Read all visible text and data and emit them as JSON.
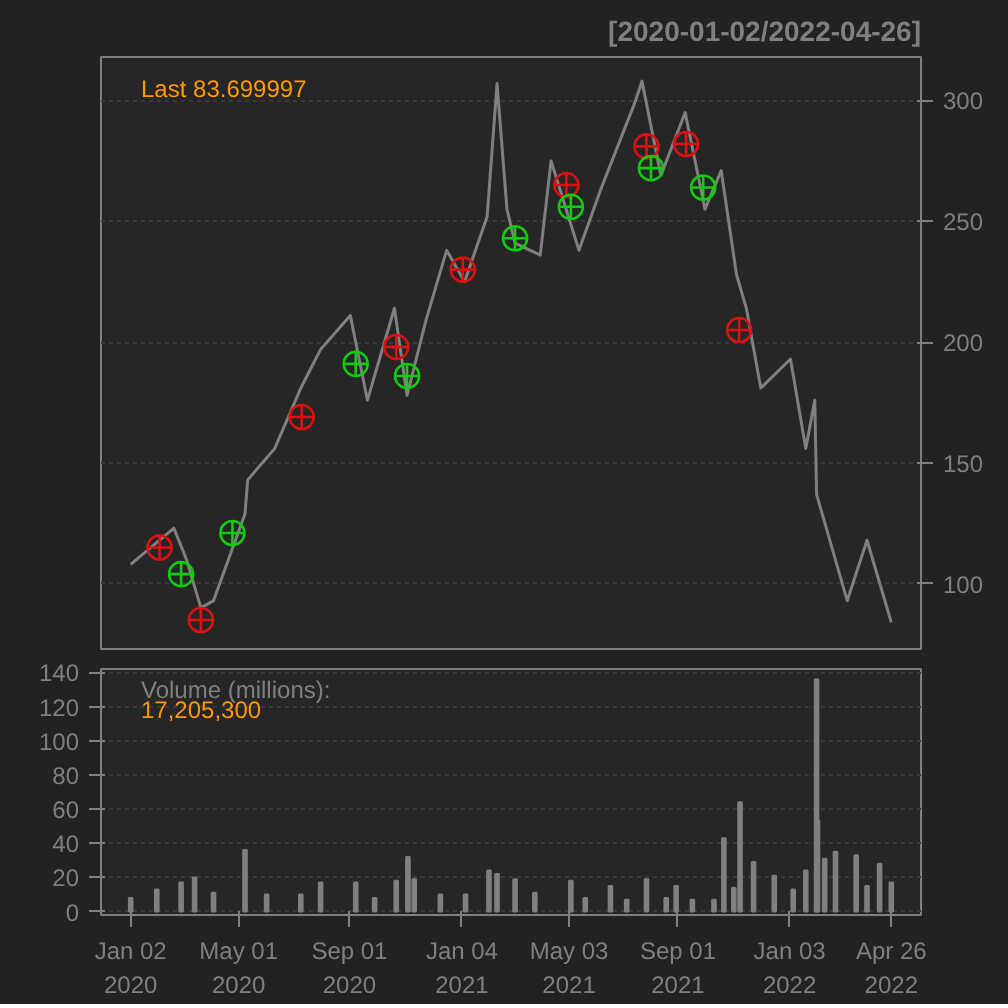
{
  "chart_data": [
    {
      "type": "line",
      "title": "[2020-01-02/2022-04-26]",
      "annotations": [
        "Last 83.699997"
      ],
      "xlim": [
        "2019-11-30",
        "2022-05-29"
      ],
      "ylim": [
        73,
        318
      ],
      "yticks": [
        100,
        150,
        200,
        250,
        300
      ],
      "xticks": [
        {
          "value": "2020-01-02",
          "label": null
        },
        {
          "value": "2020-05-01",
          "label": null
        },
        {
          "value": "2020-09-01",
          "label": null
        },
        {
          "value": "2021-01-04",
          "label": null
        },
        {
          "value": "2021-05-03",
          "label": null
        },
        {
          "value": "2021-09-01",
          "label": null
        },
        {
          "value": "2022-01-03",
          "label": null
        },
        {
          "value": "2022-04-26",
          "label": null
        }
      ],
      "tick_labels": "y",
      "grid": "y",
      "series": [
        {
          "type": "line",
          "color": "#808080",
          "x": [
            "2020-01-02",
            "2020-02-19",
            "2020-03-04",
            "2020-03-20",
            "2020-04-03",
            "2020-05-08",
            "2020-05-11",
            "2020-06-10",
            "2020-07-09",
            "2020-07-31",
            "2020-09-02",
            "2020-09-21",
            "2020-10-21",
            "2020-11-04",
            "2020-11-25",
            "2020-12-18",
            "2021-01-07",
            "2021-02-01",
            "2021-02-12",
            "2021-02-23",
            "2021-03-04",
            "2021-04-01",
            "2021-04-13",
            "2021-05-14",
            "2021-06-07",
            "2021-07-15",
            "2021-07-23",
            "2021-08-13",
            "2021-09-09",
            "2021-10-01",
            "2021-10-19",
            "2021-11-05",
            "2021-11-16",
            "2021-12-02",
            "2022-01-04",
            "2022-01-21",
            "2022-01-31",
            "2022-02-02",
            "2022-03-08",
            "2022-03-30",
            "2022-04-26"
          ],
          "values": [
            108,
            123,
            110,
            90,
            93,
            129,
            143,
            156,
            181,
            197,
            211,
            176,
            214,
            178,
            209,
            238,
            225,
            252,
            307,
            255,
            241,
            236,
            275,
            238,
            263,
            299,
            308,
            269,
            295,
            255,
            271,
            228,
            214,
            181,
            193,
            156,
            176,
            137,
            93,
            118,
            84
          ]
        },
        {
          "type": "scatter",
          "marker": "circle",
          "color": "#dd1111",
          "x": [
            "2020-02-03",
            "2020-03-20",
            "2020-07-10",
            "2020-10-23",
            "2021-01-05",
            "2021-04-30",
            "2021-07-28",
            "2021-09-10",
            "2021-11-08"
          ],
          "values": [
            115,
            85,
            169,
            198,
            230,
            265,
            281,
            282,
            205
          ]
        },
        {
          "type": "scatter",
          "marker": "circle",
          "color": "#11cc11",
          "x": [
            "2020-02-27",
            "2020-04-24",
            "2020-09-08",
            "2020-11-04",
            "2021-03-04",
            "2021-05-05",
            "2021-08-02",
            "2021-09-29"
          ],
          "values": [
            104,
            121,
            191,
            186,
            243,
            256,
            272,
            264
          ]
        }
      ]
    },
    {
      "type": "bar",
      "annotations": [
        "Volume (millions):",
        "17,205,300"
      ],
      "xlim": [
        "2019-11-30",
        "2022-05-29"
      ],
      "ylim": [
        -2,
        142
      ],
      "yticks": [
        0,
        20,
        40,
        60,
        80,
        100,
        120,
        140
      ],
      "xticks": [
        {
          "value": "2020-01-02",
          "label": "Jan 02\n2020"
        },
        {
          "value": "2020-05-01",
          "label": "May 01\n2020"
        },
        {
          "value": "2020-09-01",
          "label": "Sep 01\n2020"
        },
        {
          "value": "2021-01-04",
          "label": "Jan 04\n2021"
        },
        {
          "value": "2021-05-03",
          "label": "May 03\n2021"
        },
        {
          "value": "2021-09-01",
          "label": "Sep 01\n2021"
        },
        {
          "value": "2022-01-03",
          "label": "Jan 03\n2022"
        },
        {
          "value": "2022-04-26",
          "label": "Apr 26\n2022"
        }
      ],
      "grid": "y",
      "color": "#808080",
      "x": [
        "2020-01-02",
        "2020-01-31",
        "2020-02-27",
        "2020-03-13",
        "2020-04-03",
        "2020-05-08",
        "2020-06-01",
        "2020-07-09",
        "2020-07-31",
        "2020-09-08",
        "2020-09-29",
        "2020-10-23",
        "2020-11-05",
        "2020-11-12",
        "2020-12-11",
        "2021-01-08",
        "2021-02-03",
        "2021-02-12",
        "2021-03-04",
        "2021-03-26",
        "2021-05-05",
        "2021-05-21",
        "2021-06-18",
        "2021-07-06",
        "2021-07-28",
        "2021-08-19",
        "2021-08-30",
        "2021-09-17",
        "2021-10-11",
        "2021-10-22",
        "2021-11-02",
        "2021-11-09",
        "2021-11-24",
        "2021-12-17",
        "2022-01-07",
        "2022-01-21",
        "2022-02-02",
        "2022-02-03",
        "2022-02-11",
        "2022-02-23",
        "2022-03-18",
        "2022-03-30",
        "2022-04-13",
        "2022-04-26"
      ],
      "values": [
        8,
        13,
        17,
        20,
        11,
        36,
        10,
        10,
        17,
        17,
        8,
        18,
        32,
        19,
        10,
        10,
        24,
        22,
        19,
        11,
        18,
        8,
        15,
        7,
        19,
        8,
        15,
        7,
        7,
        43,
        14,
        64,
        29,
        21,
        13,
        24,
        136,
        53,
        31,
        35,
        33,
        15,
        28,
        17
      ]
    }
  ]
}
